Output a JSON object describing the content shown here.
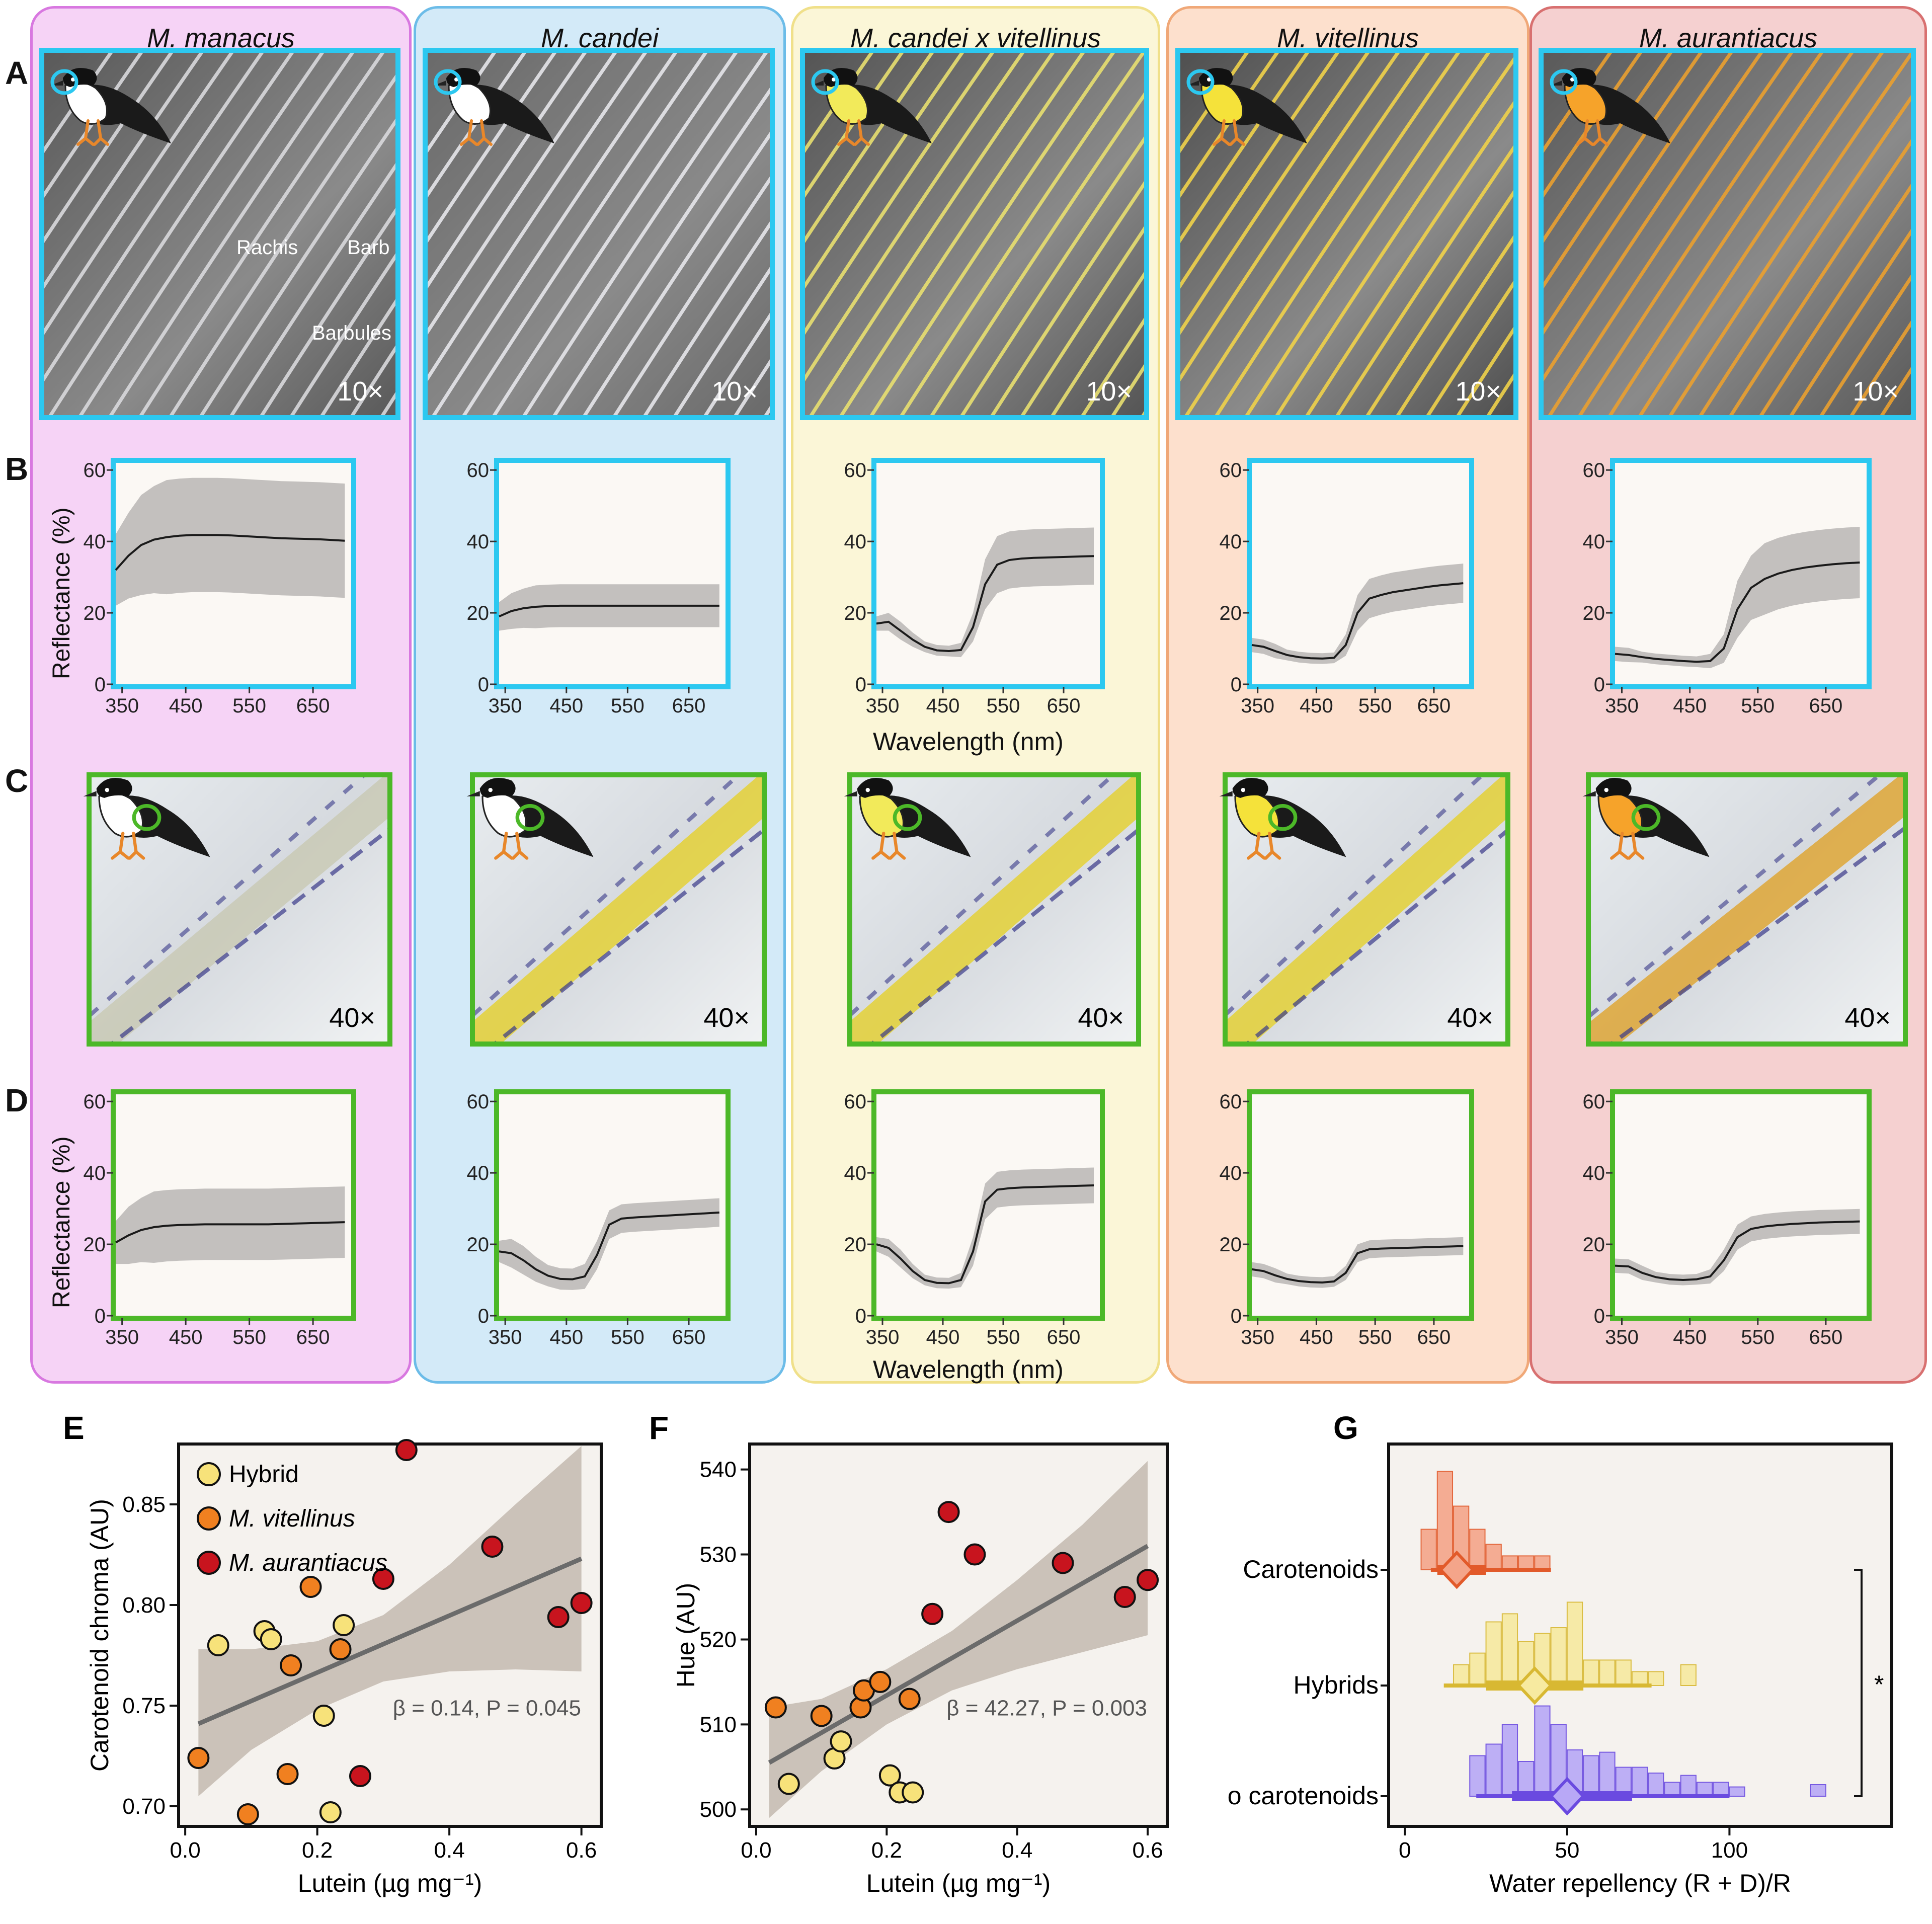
{
  "columns": [
    {
      "name": "M. manacus",
      "fill": "#f6d3f6",
      "border": "#d878e0",
      "barb": "#d8d8dc",
      "bg": "#5a5a5a",
      "throat": "#ffffff",
      "crown": "#ffffff"
    },
    {
      "name": "M. candei",
      "fill": "#d3eaf8",
      "border": "#6cbce8",
      "barb": "#e6e6ea",
      "bg": "#6a6a6a",
      "throat": "#ffffff",
      "crown": "#ffffff"
    },
    {
      "name": "M. candei x vitellinus",
      "fill": "#fbf6d7",
      "border": "#f0e08a",
      "barb": "#e8df70",
      "bg": "#555555",
      "throat": "#f2ea5a",
      "crown": "#f2ea5a"
    },
    {
      "name": "M. vitellinus",
      "fill": "#fde0cd",
      "border": "#f0a878",
      "barb": "#f0d14a",
      "bg": "#505050",
      "throat": "#f5e23a",
      "crown": "#f5e23a"
    },
    {
      "name": "M. aurantiacus",
      "fill": "#f5d0d0",
      "border": "#d87070",
      "barb": "#eaa030",
      "bg": "#5a5a5a",
      "throat": "#f6a32a",
      "crown": "#f6a32a"
    }
  ],
  "row_labels": {
    "a": "A",
    "b": "B",
    "c": "C",
    "d": "D",
    "e": "E",
    "f": "F",
    "g": "G"
  },
  "magnification": {
    "a": "10×",
    "c": "40×"
  },
  "photo_annotations": {
    "rachis": "Rachis",
    "barb": "Barb",
    "barbules": "Barbules"
  },
  "spectra": {
    "ylabel": "Reflectance (%)",
    "xlabel": "Wavelength (nm)",
    "x_ticks": [
      "350",
      "450",
      "550",
      "650"
    ],
    "y_ticks": [
      "0",
      "20",
      "40",
      "60"
    ],
    "xlim": [
      340,
      710
    ],
    "ylim": [
      0,
      62
    ],
    "wavelengths": [
      340,
      360,
      380,
      400,
      420,
      440,
      460,
      480,
      500,
      520,
      540,
      560,
      580,
      600,
      620,
      640,
      660,
      680,
      700
    ],
    "B": [
      {
        "mean": [
          32,
          36,
          39,
          40.5,
          41.2,
          41.6,
          41.8,
          41.8,
          41.8,
          41.7,
          41.5,
          41.3,
          41.1,
          40.9,
          40.8,
          40.7,
          40.6,
          40.4,
          40.2
        ],
        "sd": [
          10,
          12,
          14,
          15,
          16,
          16,
          16,
          16,
          16,
          16,
          16,
          16,
          16,
          16,
          16,
          16,
          16,
          16,
          16
        ]
      },
      {
        "mean": [
          19,
          20.5,
          21.3,
          21.7,
          21.9,
          22,
          22,
          22,
          22,
          22,
          22,
          22,
          22,
          22,
          22,
          22,
          22,
          22,
          22
        ],
        "sd": [
          4,
          5,
          5.5,
          6,
          6,
          6,
          6,
          6,
          6,
          6,
          6,
          6,
          6,
          6,
          6,
          6,
          6,
          6,
          6
        ]
      },
      {
        "mean": [
          17,
          17.5,
          15,
          12.5,
          10.5,
          9.5,
          9.3,
          9.6,
          16,
          28,
          33.5,
          34.8,
          35.2,
          35.4,
          35.5,
          35.6,
          35.7,
          35.8,
          35.9
        ],
        "sd": [
          2,
          2.5,
          2.5,
          2,
          1.5,
          1.5,
          1.5,
          2,
          4,
          7,
          8,
          8,
          8,
          8,
          8,
          8,
          8,
          8,
          8
        ]
      },
      {
        "mean": [
          11,
          10.5,
          9.3,
          8.2,
          7.6,
          7.3,
          7.2,
          7.4,
          11,
          20,
          24,
          25,
          25.8,
          26.3,
          26.8,
          27.3,
          27.7,
          28,
          28.3
        ],
        "sd": [
          2,
          2,
          2,
          1.5,
          1.5,
          1.5,
          1.5,
          1.5,
          3,
          5,
          5.5,
          5.5,
          5.5,
          5.5,
          5.5,
          5.5,
          5.5,
          5.5,
          5.5
        ]
      },
      {
        "mean": [
          8.5,
          8.2,
          7.6,
          7.1,
          6.8,
          6.5,
          6.3,
          6.5,
          10,
          21,
          27,
          29.5,
          31,
          32,
          32.7,
          33.2,
          33.6,
          33.9,
          34.1
        ],
        "sd": [
          2,
          2,
          1.5,
          1.5,
          1.5,
          1.5,
          1.5,
          2,
          4,
          8,
          9,
          10,
          10,
          10,
          10,
          10,
          10,
          10,
          10
        ]
      }
    ],
    "D": [
      {
        "mean": [
          20.5,
          22.5,
          24,
          24.8,
          25.2,
          25.4,
          25.5,
          25.6,
          25.6,
          25.6,
          25.6,
          25.6,
          25.6,
          25.7,
          25.8,
          25.9,
          26,
          26.1,
          26.2
        ],
        "sd": [
          6,
          8,
          9,
          10,
          10,
          10,
          10,
          10,
          10,
          10,
          10,
          10,
          10,
          10,
          10,
          10,
          10,
          10,
          10
        ]
      },
      {
        "mean": [
          18,
          17.5,
          15.5,
          13,
          11.2,
          10.3,
          10.2,
          11,
          17,
          25.5,
          27.2,
          27.5,
          27.7,
          27.9,
          28.1,
          28.3,
          28.5,
          28.7,
          28.9
        ],
        "sd": [
          3,
          4,
          4,
          3.5,
          3,
          3,
          3,
          3.5,
          4,
          4,
          4,
          4,
          4,
          4,
          4,
          4,
          4,
          4,
          4
        ]
      },
      {
        "mean": [
          20,
          19,
          16,
          12.5,
          10,
          9.2,
          9.1,
          10,
          18,
          32,
          35.3,
          35.7,
          35.9,
          36,
          36.1,
          36.2,
          36.3,
          36.4,
          36.5
        ],
        "sd": [
          2,
          2.5,
          2.5,
          2,
          1.5,
          1.5,
          1.5,
          2,
          4,
          5,
          5,
          5,
          5,
          5,
          5,
          5,
          5,
          5,
          5
        ]
      },
      {
        "mean": [
          13,
          12.5,
          11.3,
          10.3,
          9.7,
          9.4,
          9.3,
          9.6,
          12,
          17.5,
          18.6,
          18.8,
          18.9,
          19,
          19.1,
          19.2,
          19.3,
          19.4,
          19.5
        ],
        "sd": [
          2,
          2,
          2,
          1.5,
          1.5,
          1.5,
          1.5,
          1.5,
          2,
          2.5,
          2.5,
          2.5,
          2.5,
          2.5,
          2.5,
          2.5,
          2.5,
          2.5,
          2.5
        ]
      },
      {
        "mean": [
          14,
          13.8,
          12,
          10.8,
          10.2,
          10,
          10.2,
          11,
          15.5,
          22,
          24.3,
          25,
          25.4,
          25.7,
          25.9,
          26.1,
          26.2,
          26.3,
          26.4
        ],
        "sd": [
          2,
          2,
          2,
          1.5,
          1.5,
          1.5,
          1.5,
          2,
          3,
          3.5,
          3.5,
          3.5,
          3.5,
          3.5,
          3.5,
          3.5,
          3.5,
          3.5,
          3.5
        ]
      }
    ]
  },
  "chart_data": [
    {
      "type": "scatter",
      "panel": "E",
      "xlabel": "Lutein (µg mg⁻¹)",
      "ylabel": "Carotenoid chroma (AU)",
      "xlim": [
        -0.01,
        0.63
      ],
      "ylim": [
        0.69,
        0.88
      ],
      "x_ticks": [
        "0.0",
        "0.2",
        "0.4",
        "0.6"
      ],
      "y_ticks": [
        "0.70",
        "0.75",
        "0.80",
        "0.85"
      ],
      "annotation": "β = 0.14, P = 0.045",
      "legend": [
        {
          "name": "Hybrid",
          "color": "#f7e27a"
        },
        {
          "name": "M. vitellinus",
          "color": "#f08020"
        },
        {
          "name": "M. aurantiacus",
          "color": "#c8141e"
        }
      ],
      "series": [
        {
          "name": "Hybrid",
          "color": "#f7e27a",
          "points": [
            [
              0.05,
              0.78
            ],
            [
              0.12,
              0.787
            ],
            [
              0.13,
              0.783
            ],
            [
              0.24,
              0.79
            ],
            [
              0.21,
              0.745
            ],
            [
              0.22,
              0.697
            ]
          ]
        },
        {
          "name": "M. vitellinus",
          "color": "#f08020",
          "points": [
            [
              0.02,
              0.724
            ],
            [
              0.095,
              0.696
            ],
            [
              0.155,
              0.716
            ],
            [
              0.16,
              0.77
            ],
            [
              0.19,
              0.809
            ],
            [
              0.235,
              0.778
            ]
          ]
        },
        {
          "name": "M. aurantiacus",
          "color": "#c8141e",
          "points": [
            [
              0.335,
              0.877
            ],
            [
              0.3,
              0.813
            ],
            [
              0.465,
              0.829
            ],
            [
              0.6,
              0.801
            ],
            [
              0.565,
              0.794
            ],
            [
              0.265,
              0.715
            ]
          ]
        }
      ],
      "fit": {
        "x": [
          0.02,
          0.6
        ],
        "y": [
          0.741,
          0.823
        ]
      },
      "ci": {
        "x": [
          0.02,
          0.1,
          0.2,
          0.3,
          0.4,
          0.5,
          0.6
        ],
        "lower": [
          0.705,
          0.728,
          0.748,
          0.762,
          0.767,
          0.768,
          0.767
        ],
        "upper": [
          0.778,
          0.778,
          0.782,
          0.795,
          0.82,
          0.85,
          0.879
        ]
      }
    },
    {
      "type": "scatter",
      "panel": "F",
      "xlabel": "Lutein (µg mg⁻¹)",
      "ylabel": "Hue (AU)",
      "xlim": [
        -0.01,
        0.63
      ],
      "ylim": [
        498,
        543
      ],
      "x_ticks": [
        "0.0",
        "0.2",
        "0.4",
        "0.6"
      ],
      "y_ticks": [
        "500",
        "510",
        "520",
        "530",
        "540"
      ],
      "annotation": "β = 42.27, P = 0.003",
      "series": [
        {
          "name": "Hybrid",
          "color": "#f7e27a",
          "points": [
            [
              0.05,
              503
            ],
            [
              0.12,
              506
            ],
            [
              0.13,
              508
            ],
            [
              0.205,
              504
            ],
            [
              0.22,
              502
            ],
            [
              0.24,
              502
            ]
          ]
        },
        {
          "name": "M. vitellinus",
          "color": "#f08020",
          "points": [
            [
              0.03,
              512
            ],
            [
              0.1,
              511
            ],
            [
              0.16,
              512
            ],
            [
              0.165,
              514
            ],
            [
              0.19,
              515
            ],
            [
              0.235,
              513
            ]
          ]
        },
        {
          "name": "M. aurantiacus",
          "color": "#c8141e",
          "points": [
            [
              0.295,
              535
            ],
            [
              0.335,
              530
            ],
            [
              0.27,
              523
            ],
            [
              0.47,
              529
            ],
            [
              0.565,
              525
            ],
            [
              0.6,
              527
            ]
          ]
        }
      ],
      "fit": {
        "x": [
          0.02,
          0.6
        ],
        "y": [
          505.5,
          531
        ]
      },
      "ci": {
        "x": [
          0.02,
          0.1,
          0.2,
          0.3,
          0.4,
          0.5,
          0.6
        ],
        "lower": [
          499,
          504.5,
          510,
          514,
          516.5,
          518.5,
          520.5
        ],
        "upper": [
          512,
          513,
          516.5,
          521,
          527,
          533.5,
          541
        ]
      }
    },
    {
      "type": "histogram",
      "panel": "G",
      "xlabel": "Water repellency (R + D)/R",
      "xlim": [
        -5,
        150
      ],
      "x_ticks": [
        "0",
        "50",
        "100"
      ],
      "significance": "*",
      "groups": [
        {
          "name": "Carotenoids",
          "color": "#e25a2a",
          "light": "#f4a58a",
          "bins_left": [
            5,
            10,
            15,
            20,
            25,
            30,
            35,
            40
          ],
          "bins_height": [
            0.35,
            0.85,
            0.55,
            0.35,
            0.22,
            0.12,
            0.12,
            0.12
          ],
          "mean": 16,
          "inner": [
            10,
            25
          ],
          "outer": [
            8,
            45
          ]
        },
        {
          "name": "Hybrids",
          "color": "#d8b832",
          "light": "#f7eaa0",
          "bins_left": [
            15,
            20,
            25,
            30,
            35,
            40,
            45,
            50,
            55,
            60,
            65,
            70,
            75,
            85
          ],
          "bins_height": [
            0.18,
            0.28,
            0.55,
            0.62,
            0.38,
            0.45,
            0.5,
            0.72,
            0.22,
            0.22,
            0.22,
            0.12,
            0.12,
            0.18
          ],
          "mean": 40,
          "inner": [
            25,
            55
          ],
          "outer": [
            12,
            76
          ]
        },
        {
          "name": "No carotenoids",
          "color": "#6a4ae0",
          "light": "#b8a8f6",
          "bins_left": [
            20,
            25,
            30,
            35,
            40,
            45,
            50,
            55,
            60,
            65,
            70,
            75,
            80,
            85,
            90,
            95,
            100,
            125
          ],
          "bins_height": [
            0.35,
            0.45,
            0.62,
            0.3,
            0.78,
            0.62,
            0.4,
            0.35,
            0.38,
            0.25,
            0.25,
            0.2,
            0.12,
            0.18,
            0.12,
            0.12,
            0.08,
            0.1
          ],
          "mean": 50,
          "inner": [
            33,
            70
          ],
          "outer": [
            22,
            100
          ]
        }
      ]
    }
  ]
}
